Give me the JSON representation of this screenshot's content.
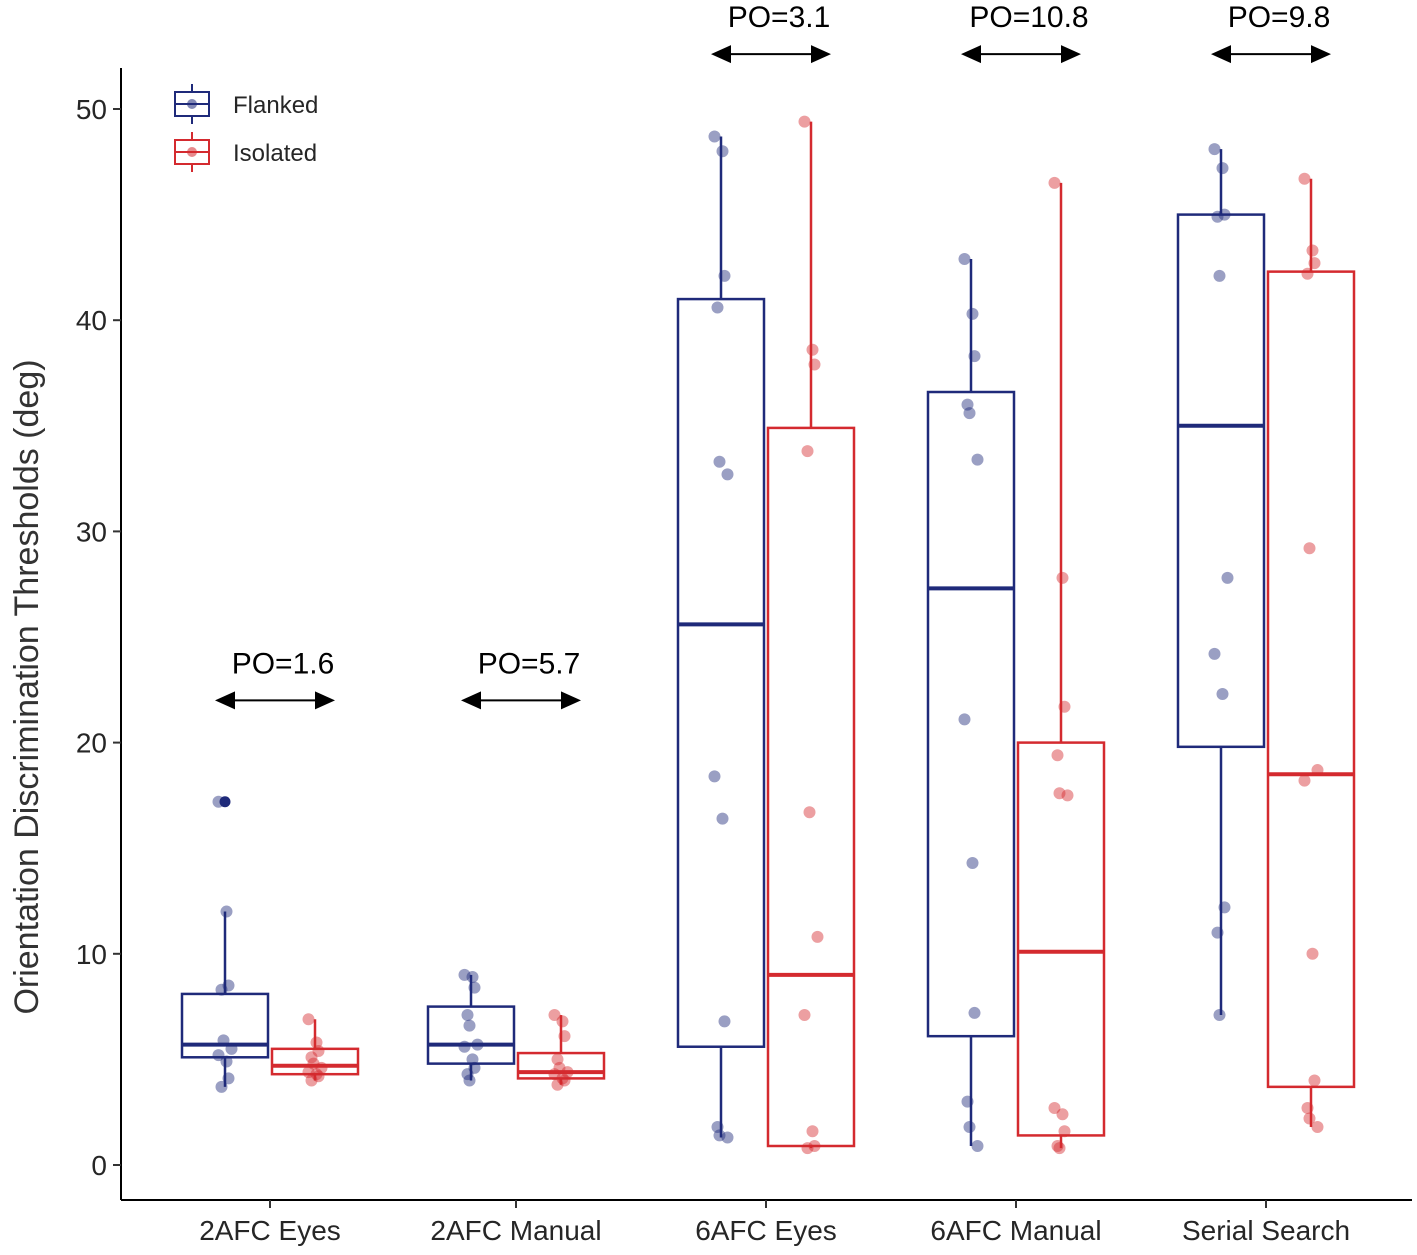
{
  "chart_data": {
    "type": "box",
    "title": "",
    "xlabel": "",
    "ylabel": "Orientation Discrimination Thresholds (deg)",
    "ylim": [
      -1.7,
      52
    ],
    "yticks": [
      0,
      10,
      20,
      30,
      40,
      50
    ],
    "categories": [
      "2AFC Eyes",
      "2AFC Manual",
      "6AFC Eyes",
      "6AFC Manual",
      "Serial Search"
    ],
    "legend": {
      "placement": "top-left",
      "entries": [
        {
          "name": "Flanked",
          "color": "#1f2a7a"
        },
        {
          "name": "Isolated",
          "color": "#d42a2f"
        }
      ]
    },
    "series": [
      {
        "name": "Flanked",
        "color": "#1f2a7a",
        "boxes": [
          {
            "q1": 5.1,
            "median": 5.7,
            "q3": 8.1,
            "whisker_low": 3.7,
            "whisker_high": 12.0,
            "outliers": [
              17.2
            ],
            "points": [
              17.2,
              12.0,
              8.5,
              8.3,
              5.9,
              5.5,
              5.2,
              4.9,
              4.1,
              3.7
            ]
          },
          {
            "q1": 4.8,
            "median": 5.7,
            "q3": 7.5,
            "whisker_low": 4.0,
            "whisker_high": 9.0,
            "outliers": [],
            "points": [
              9.0,
              8.9,
              8.4,
              7.1,
              6.6,
              5.7,
              5.6,
              5.0,
              4.6,
              4.3,
              4.0
            ]
          },
          {
            "q1": 5.6,
            "median": 25.6,
            "q3": 41.0,
            "whisker_low": 1.3,
            "whisker_high": 48.7,
            "outliers": [],
            "points": [
              48.7,
              48.0,
              42.1,
              40.6,
              33.3,
              32.7,
              18.4,
              16.4,
              6.8,
              1.8,
              1.4,
              1.3
            ]
          },
          {
            "q1": 6.1,
            "median": 27.3,
            "q3": 36.6,
            "whisker_low": 0.9,
            "whisker_high": 42.9,
            "outliers": [],
            "points": [
              42.9,
              40.3,
              38.3,
              36.0,
              35.6,
              33.4,
              21.1,
              14.3,
              7.2,
              3.0,
              1.8,
              0.9
            ]
          },
          {
            "q1": 19.8,
            "median": 35.0,
            "q3": 45.0,
            "whisker_low": 7.1,
            "whisker_high": 48.1,
            "outliers": [],
            "points": [
              48.1,
              47.2,
              45.0,
              44.9,
              42.1,
              27.8,
              24.2,
              22.3,
              12.2,
              11.0,
              7.1
            ]
          }
        ]
      },
      {
        "name": "Isolated",
        "color": "#d42a2f",
        "boxes": [
          {
            "q1": 4.3,
            "median": 4.7,
            "q3": 5.5,
            "whisker_low": 4.0,
            "whisker_high": 6.9,
            "outliers": [],
            "points": [
              6.9,
              5.8,
              5.4,
              5.1,
              4.8,
              4.6,
              4.4,
              4.3,
              4.2,
              4.0
            ]
          },
          {
            "q1": 4.1,
            "median": 4.4,
            "q3": 5.3,
            "whisker_low": 3.8,
            "whisker_high": 7.1,
            "outliers": [],
            "points": [
              7.1,
              6.8,
              6.1,
              5.0,
              4.6,
              4.4,
              4.3,
              4.1,
              4.0,
              3.8
            ]
          },
          {
            "q1": 0.9,
            "median": 9.0,
            "q3": 34.9,
            "whisker_low": 0.8,
            "whisker_high": 49.4,
            "outliers": [],
            "points": [
              49.4,
              38.6,
              37.9,
              33.8,
              16.7,
              10.8,
              7.1,
              1.6,
              0.9,
              0.8
            ]
          },
          {
            "q1": 1.4,
            "median": 10.1,
            "q3": 20.0,
            "whisker_low": 0.8,
            "whisker_high": 46.5,
            "outliers": [],
            "points": [
              46.5,
              27.8,
              21.7,
              19.4,
              17.6,
              17.5,
              2.7,
              2.4,
              1.6,
              0.9,
              0.8
            ]
          },
          {
            "q1": 3.7,
            "median": 18.5,
            "q3": 42.3,
            "whisker_low": 1.8,
            "whisker_high": 46.7,
            "outliers": [],
            "points": [
              46.7,
              43.3,
              42.7,
              42.2,
              29.2,
              18.7,
              18.2,
              10.0,
              4.0,
              2.7,
              2.2,
              1.8
            ]
          }
        ]
      }
    ],
    "annotations": [
      {
        "category": "2AFC Eyes",
        "text": "PO=1.6",
        "y": 22
      },
      {
        "category": "2AFC Manual",
        "text": "PO=5.7",
        "y": 22
      },
      {
        "category": "6AFC Eyes",
        "text": "PO=3.1",
        "y": 52.6
      },
      {
        "category": "6AFC Manual",
        "text": "PO=10.8",
        "y": 52.6
      },
      {
        "category": "Serial Search",
        "text": "PO=9.8",
        "y": 52.6
      }
    ]
  }
}
